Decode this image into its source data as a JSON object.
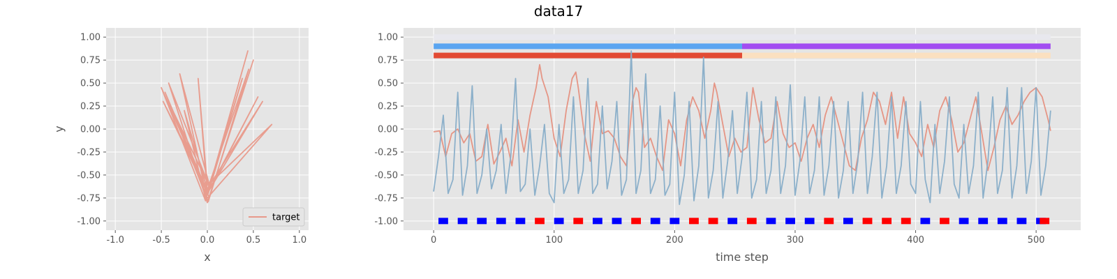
{
  "figure": {
    "title": "data17"
  },
  "colors": {
    "panel_bg": "#e5e5e5",
    "grid": "#ffffff",
    "tick_text": "#555555",
    "target_line": "#e8998a",
    "series_red": "#e5907f",
    "series_blue": "#87adc8",
    "bar_gray": "#e8e8ee",
    "bar_blue": "#5aa5f0",
    "bar_purple": "#a24cf0",
    "bar_red": "#e24a33",
    "bar_peach": "#fbe0c0",
    "marker_blue": "#0000ff",
    "marker_red": "#ff0000"
  },
  "chart_data": [
    {
      "type": "line",
      "id": "phase-plot",
      "xlabel": "x",
      "ylabel": "y",
      "xlim": [
        -1.1,
        1.1
      ],
      "ylim": [
        -1.1,
        1.1
      ],
      "xticks": [
        "-1.0",
        "-0.5",
        "0.0",
        "0.5",
        "1.0"
      ],
      "yticks": [
        "-1.00",
        "-0.75",
        "-0.50",
        "-0.25",
        "0.00",
        "0.25",
        "0.50",
        "0.75",
        "1.00"
      ],
      "grid": true,
      "legend": {
        "position": "lower-right",
        "entries": [
          "target"
        ]
      },
      "series": [
        {
          "name": "target",
          "x": [
            0.0,
            -0.5,
            -0.02,
            0.44,
            0.01,
            -0.48,
            0.02,
            0.5,
            0.0,
            -0.42,
            0.03,
            0.55,
            -0.01,
            -0.3,
            0.02,
            0.7,
            0.0,
            -0.46,
            0.01,
            0.38,
            -0.02,
            -0.25,
            0.0,
            0.45,
            0.01,
            -0.4,
            0.02,
            0.6,
            0.0,
            -0.1,
            0.0
          ],
          "y": [
            -0.7,
            0.45,
            -0.78,
            0.85,
            -0.68,
            0.3,
            -0.74,
            0.75,
            -0.8,
            0.5,
            -0.65,
            0.35,
            -0.72,
            0.6,
            -0.6,
            0.05,
            -0.75,
            0.4,
            -0.7,
            0.55,
            -0.76,
            0.2,
            -0.66,
            0.65,
            -0.79,
            0.25,
            -0.62,
            0.3,
            -0.7,
            0.55,
            -0.62
          ]
        }
      ]
    },
    {
      "type": "line",
      "id": "time-series",
      "xlabel": "time step",
      "ylabel": "",
      "xlim": [
        -25,
        537
      ],
      "ylim": [
        -1.1,
        1.1
      ],
      "xticks": [
        "0",
        "100",
        "200",
        "300",
        "400",
        "500"
      ],
      "yticks": [
        "-1.00",
        "-0.75",
        "-0.50",
        "-0.25",
        "0.00",
        "0.25",
        "0.50",
        "0.75",
        "1.00"
      ],
      "grid": true,
      "series": [
        {
          "color": "series_red",
          "x": [
            0,
            5,
            10,
            15,
            20,
            25,
            30,
            35,
            40,
            45,
            50,
            55,
            60,
            65,
            70,
            75,
            80,
            85,
            88,
            90,
            95,
            100,
            105,
            110,
            115,
            118,
            120,
            125,
            130,
            135,
            140,
            145,
            150,
            155,
            160,
            165,
            168,
            170,
            175,
            180,
            185,
            190,
            195,
            200,
            205,
            210,
            215,
            220,
            225,
            230,
            233,
            235,
            240,
            245,
            250,
            255,
            260,
            265,
            270,
            275,
            280,
            285,
            290,
            295,
            300,
            305,
            310,
            315,
            320,
            325,
            330,
            335,
            340,
            345,
            350,
            355,
            360,
            365,
            370,
            375,
            380,
            385,
            390,
            395,
            400,
            405,
            410,
            415,
            420,
            425,
            430,
            435,
            440,
            445,
            450,
            455,
            460,
            465,
            470,
            475,
            480,
            485,
            490,
            495,
            500,
            505,
            510,
            512
          ],
          "y": [
            -0.03,
            -0.02,
            -0.3,
            -0.05,
            0.0,
            -0.15,
            -0.05,
            -0.35,
            -0.3,
            0.05,
            -0.38,
            -0.25,
            -0.1,
            -0.4,
            0.1,
            -0.25,
            0.15,
            0.45,
            0.7,
            0.55,
            0.35,
            -0.1,
            -0.3,
            0.2,
            0.55,
            0.62,
            0.45,
            -0.05,
            -0.35,
            0.3,
            -0.05,
            -0.02,
            -0.1,
            -0.3,
            -0.4,
            0.3,
            0.45,
            0.4,
            -0.2,
            -0.1,
            -0.3,
            -0.45,
            0.1,
            -0.05,
            -0.4,
            0.1,
            0.35,
            0.2,
            -0.1,
            0.2,
            0.5,
            0.4,
            0.05,
            -0.3,
            -0.1,
            -0.25,
            -0.2,
            0.45,
            0.1,
            -0.15,
            -0.1,
            0.3,
            -0.05,
            -0.2,
            -0.15,
            -0.35,
            -0.1,
            0.05,
            -0.2,
            0.15,
            0.35,
            0.1,
            -0.15,
            -0.4,
            -0.45,
            -0.1,
            0.1,
            0.4,
            0.3,
            0.05,
            0.4,
            -0.1,
            0.35,
            -0.05,
            -0.15,
            -0.3,
            0.05,
            -0.2,
            0.2,
            0.35,
            0.1,
            -0.25,
            -0.15,
            0.1,
            0.35,
            -0.05,
            -0.45,
            -0.2,
            0.1,
            0.25,
            0.05,
            0.15,
            0.3,
            0.4,
            0.45,
            0.35,
            0.1,
            -0.02
          ]
        },
        {
          "color": "series_blue",
          "x": [
            0,
            4,
            8,
            12,
            16,
            20,
            24,
            28,
            32,
            36,
            40,
            44,
            48,
            52,
            56,
            60,
            64,
            68,
            72,
            76,
            80,
            84,
            88,
            92,
            96,
            100,
            104,
            108,
            112,
            116,
            120,
            124,
            128,
            132,
            136,
            140,
            144,
            148,
            152,
            156,
            160,
            164,
            168,
            172,
            176,
            180,
            184,
            188,
            192,
            196,
            200,
            204,
            208,
            212,
            216,
            220,
            224,
            228,
            232,
            236,
            240,
            244,
            248,
            252,
            256,
            260,
            264,
            268,
            272,
            276,
            280,
            284,
            288,
            292,
            296,
            300,
            304,
            308,
            312,
            316,
            320,
            324,
            328,
            332,
            336,
            340,
            344,
            348,
            352,
            356,
            360,
            364,
            368,
            372,
            376,
            380,
            384,
            388,
            392,
            396,
            400,
            404,
            408,
            412,
            416,
            420,
            424,
            428,
            432,
            436,
            440,
            444,
            448,
            452,
            456,
            460,
            464,
            468,
            472,
            476,
            480,
            484,
            488,
            492,
            496,
            500,
            504,
            508,
            512
          ],
          "y": [
            -0.68,
            -0.3,
            0.15,
            -0.7,
            -0.55,
            0.4,
            -0.72,
            -0.4,
            0.47,
            -0.7,
            -0.5,
            0.0,
            -0.65,
            -0.45,
            0.05,
            -0.7,
            -0.3,
            0.55,
            -0.68,
            -0.6,
            0.0,
            -0.72,
            -0.4,
            0.05,
            -0.7,
            -0.8,
            0.05,
            -0.7,
            -0.55,
            0.35,
            -0.7,
            -0.45,
            0.55,
            -0.7,
            -0.6,
            0.25,
            -0.65,
            -0.35,
            0.3,
            -0.72,
            -0.55,
            0.85,
            -0.7,
            -0.45,
            0.6,
            -0.7,
            -0.55,
            0.25,
            -0.72,
            -0.6,
            0.4,
            -0.82,
            -0.5,
            0.3,
            -0.78,
            -0.4,
            0.78,
            -0.75,
            -0.45,
            0.3,
            -0.75,
            -0.35,
            0.2,
            -0.7,
            -0.3,
            0.4,
            -0.75,
            -0.55,
            0.3,
            -0.7,
            -0.45,
            0.35,
            -0.7,
            -0.4,
            0.48,
            -0.72,
            -0.35,
            0.35,
            -0.7,
            -0.45,
            0.35,
            -0.72,
            -0.4,
            0.3,
            -0.75,
            -0.45,
            0.3,
            -0.7,
            -0.35,
            0.4,
            -0.7,
            -0.3,
            0.4,
            -0.75,
            -0.4,
            0.35,
            -0.7,
            -0.4,
            0.3,
            -0.6,
            -0.7,
            0.3,
            -0.55,
            -0.8,
            0.05,
            -0.7,
            -0.35,
            0.35,
            -0.6,
            -0.75,
            0.05,
            -0.7,
            -0.4,
            0.4,
            -0.75,
            -0.35,
            0.35,
            -0.7,
            -0.45,
            0.45,
            -0.75,
            -0.4,
            0.45,
            -0.7,
            -0.35,
            0.45,
            -0.72,
            -0.4,
            0.2
          ]
        }
      ],
      "segment_bars": [
        {
          "y": 1.0,
          "segments": [
            {
              "start": 0,
              "end": 512,
              "color": "bar_gray"
            }
          ]
        },
        {
          "y": 0.9,
          "segments": [
            {
              "start": 0,
              "end": 256,
              "color": "bar_blue"
            },
            {
              "start": 256,
              "end": 512,
              "color": "bar_purple"
            }
          ]
        },
        {
          "y": 0.8,
          "segments": [
            {
              "start": 0,
              "end": 256,
              "color": "bar_red"
            },
            {
              "start": 256,
              "end": 512,
              "color": "bar_peach"
            }
          ]
        }
      ],
      "markers": {
        "y": -1.0,
        "width": 8,
        "colors": [
          "blue",
          "blue",
          "blue",
          "blue",
          "blue",
          "red",
          "blue",
          "red",
          "blue",
          "blue",
          "red",
          "blue",
          "blue",
          "red",
          "red",
          "blue",
          "red",
          "blue",
          "blue",
          "blue",
          "red",
          "blue",
          "red",
          "red",
          "red",
          "blue",
          "red",
          "blue",
          "blue",
          "blue",
          "blue",
          "blue",
          "red"
        ],
        "x": [
          8,
          24,
          40,
          56,
          72,
          88,
          104,
          120,
          136,
          152,
          168,
          184,
          200,
          216,
          232,
          248,
          264,
          280,
          296,
          312,
          328,
          344,
          360,
          376,
          392,
          408,
          424,
          440,
          456,
          472,
          488,
          504,
          507
        ]
      }
    }
  ]
}
